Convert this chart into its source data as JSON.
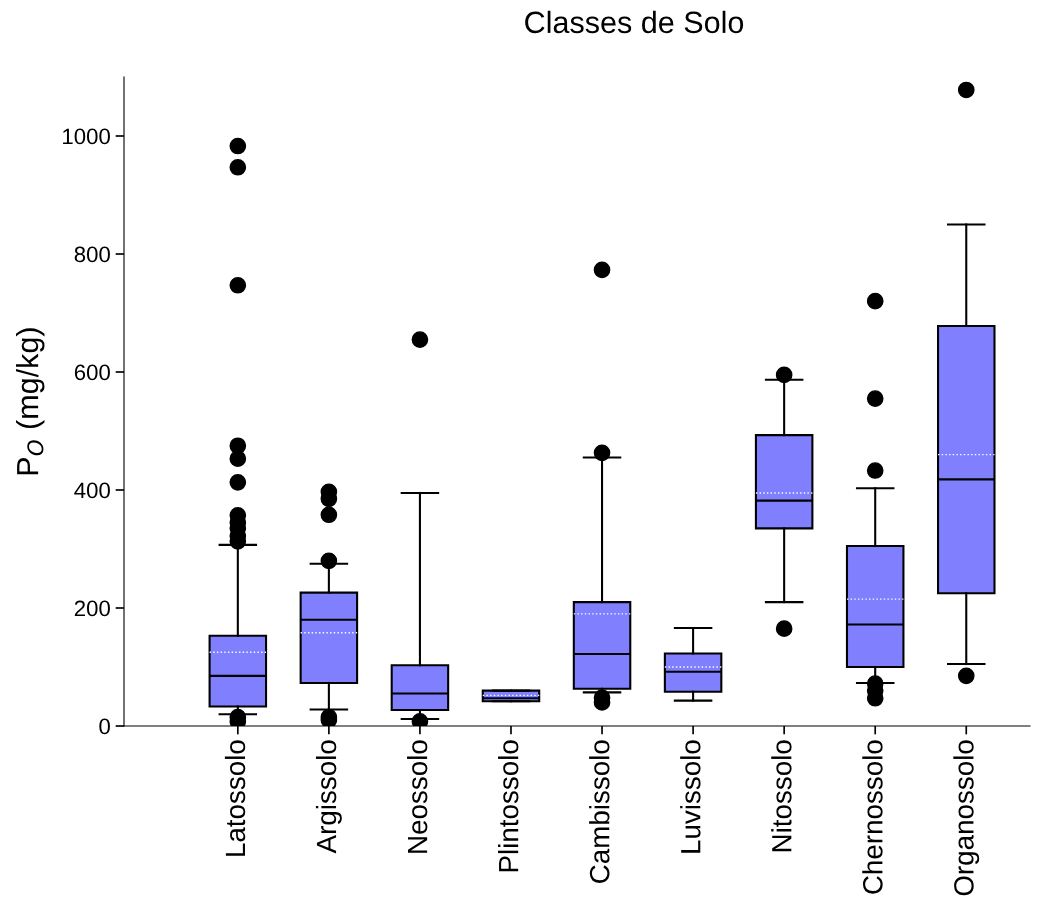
{
  "chart_data": {
    "type": "box",
    "title": "Classes de Solo",
    "ylabel": "P$_{O}$ (mg/kg)",
    "categories": [
      "Latossolo",
      "Argissolo",
      "Neossolo",
      "Plintossolo",
      "Cambissolo",
      "Luvissolo",
      "Nitossolo",
      "Chernossolo",
      "Organossolo"
    ],
    "color": "#8080ff",
    "boxes": [
      {
        "low": 20,
        "q1": 33,
        "median": 85,
        "q3": 153,
        "high": 307,
        "mean": 125,
        "outliers": [
          983,
          947,
          747,
          475,
          453,
          413,
          357,
          345,
          335,
          322,
          313,
          15,
          8
        ]
      },
      {
        "low": 28,
        "q1": 73,
        "median": 180,
        "q3": 226,
        "high": 275,
        "mean": 158,
        "outliers": [
          397,
          385,
          358,
          280,
          15,
          10
        ]
      },
      {
        "low": 12,
        "q1": 27,
        "median": 55,
        "q3": 103,
        "high": 395,
        "mean": 117,
        "outliers": [
          655,
          8
        ]
      },
      {
        "low": 42,
        "q1": 42,
        "median": 47,
        "q3": 60,
        "high": 60,
        "mean": 52
      },
      {
        "low": 57,
        "q1": 63,
        "median": 122,
        "q3": 210,
        "high": 455,
        "mean": 190,
        "outliers": [
          773,
          463,
          48,
          40
        ]
      },
      {
        "low": 43,
        "q1": 58,
        "median": 92,
        "q3": 123,
        "high": 166,
        "mean": 100
      },
      {
        "low": 210,
        "q1": 335,
        "median": 382,
        "q3": 493,
        "high": 587,
        "mean": 395,
        "outliers": [
          595,
          165
        ]
      },
      {
        "low": 73,
        "q1": 100,
        "median": 172,
        "q3": 305,
        "high": 403,
        "mean": 215,
        "outliers": [
          720,
          555,
          433,
          72,
          60,
          47
        ]
      },
      {
        "low": 105,
        "q1": 225,
        "median": 418,
        "q3": 678,
        "high": 850,
        "mean": 460,
        "outliers": [
          1078,
          85
        ]
      }
    ],
    "ylim": [
      0,
      1100
    ],
    "yticks": [
      0,
      200,
      400,
      600,
      800,
      1000
    ],
    "grid": false
  }
}
